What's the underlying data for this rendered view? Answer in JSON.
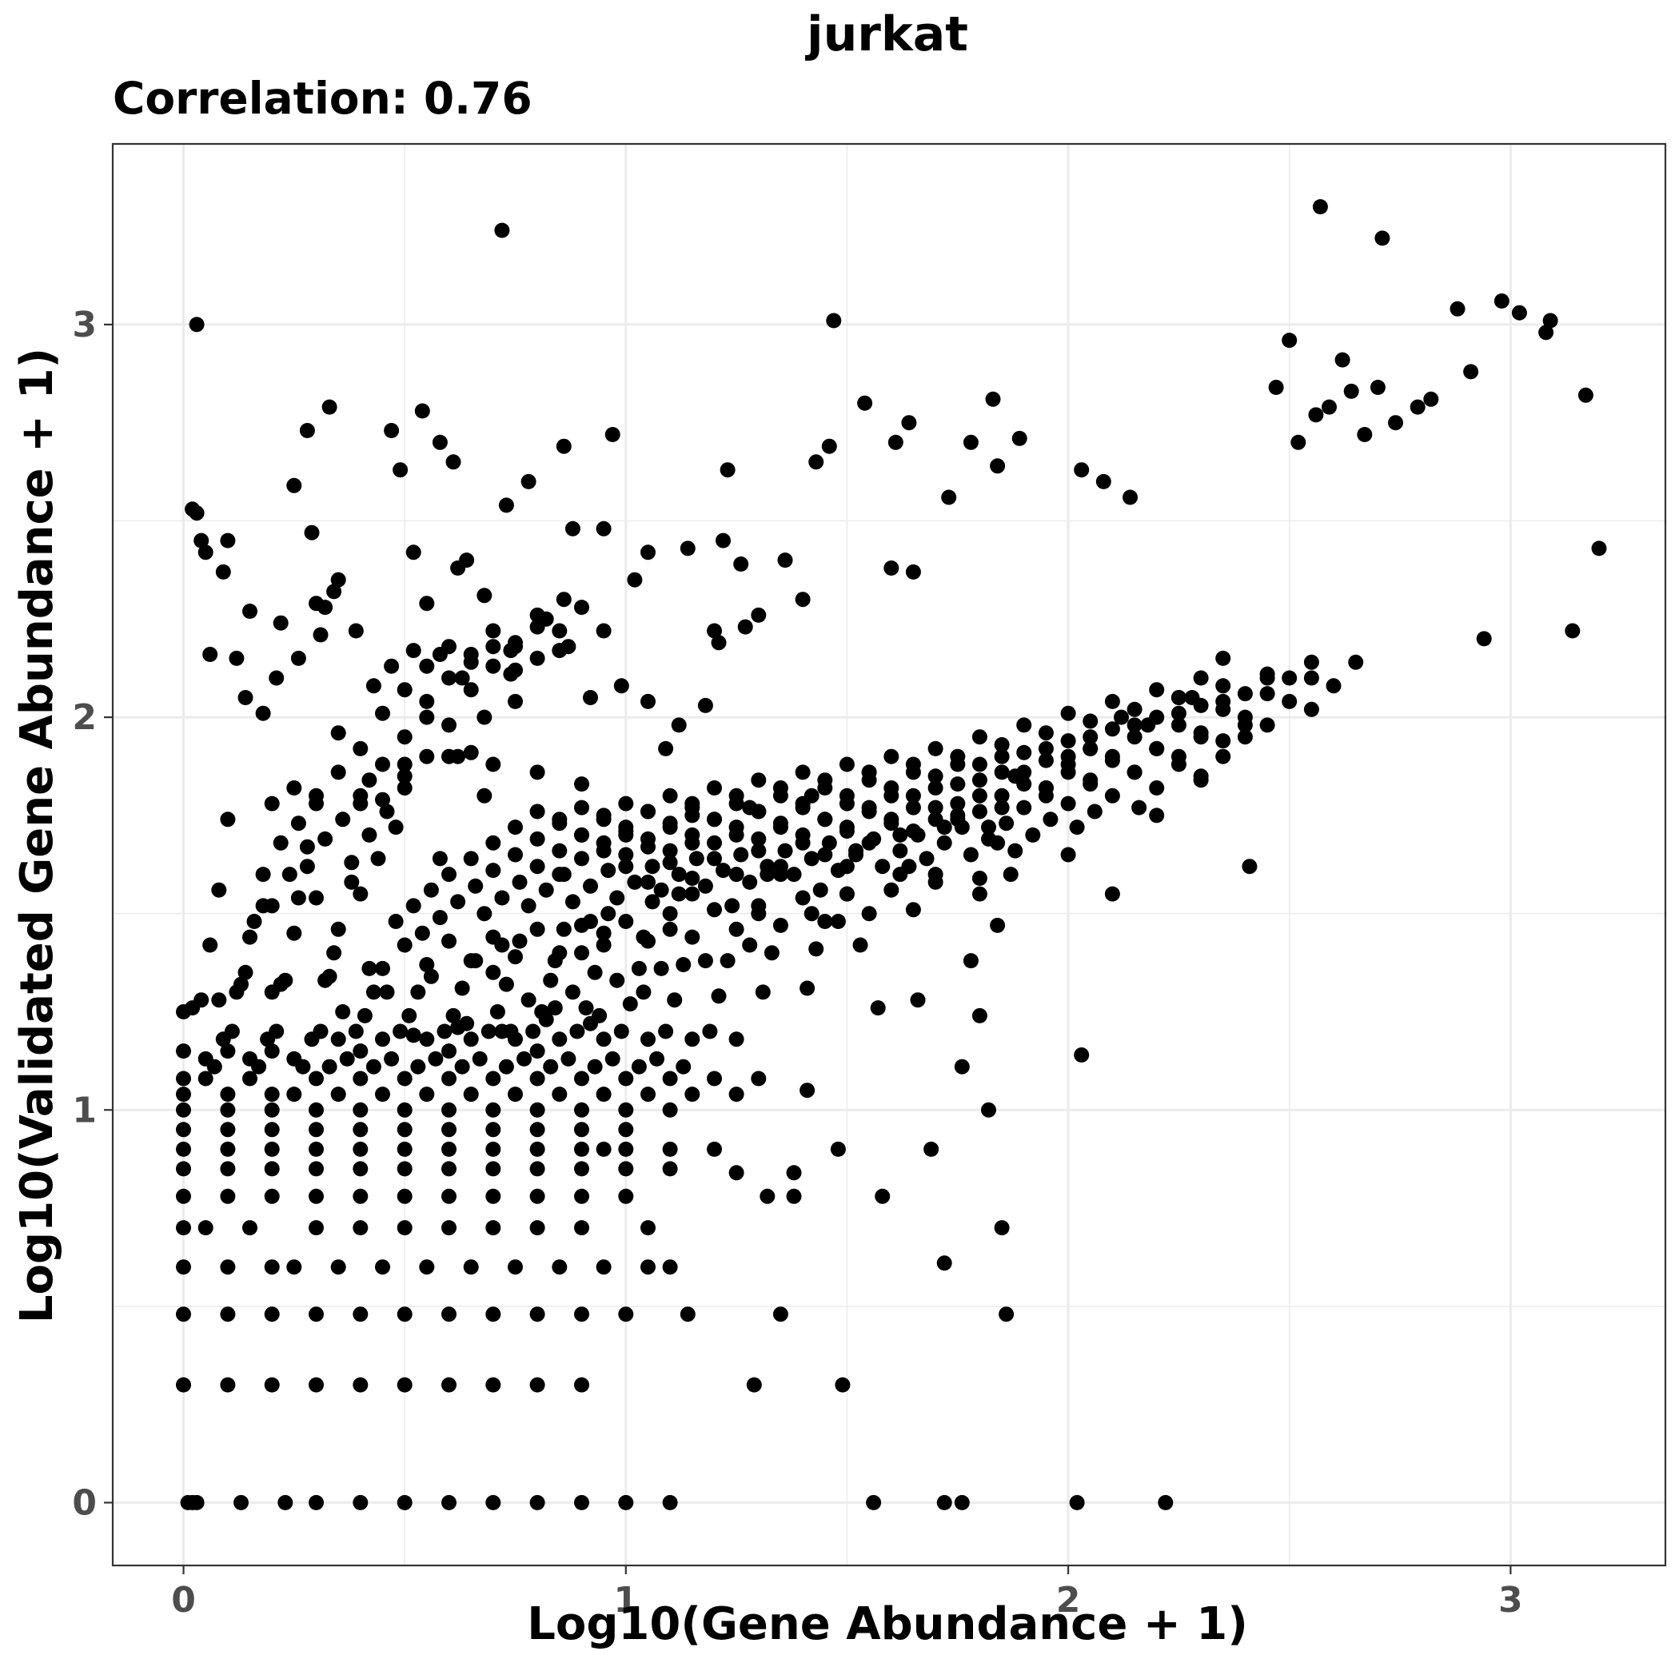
{
  "chart_data": {
    "type": "scatter",
    "title": "jurkat",
    "subtitle": "Correlation: 0.76",
    "xlabel": "Log10(Gene Abundance + 1)",
    "ylabel": "Log10(Validated Gene Abundance + 1)",
    "xlim": [
      -0.16,
      3.35
    ],
    "ylim": [
      -0.16,
      3.46
    ],
    "x_ticks": [
      0,
      1,
      2,
      3
    ],
    "x_tick_labels": [
      "0",
      "1",
      "2",
      "3"
    ],
    "y_ticks": [
      0,
      1,
      2,
      3
    ],
    "y_tick_labels": [
      "0",
      "1",
      "2",
      "3"
    ],
    "grid": true,
    "point_color": "#000000",
    "background": "#ffffff",
    "grid_color": "#ebebeb",
    "points_x": [
      0.72,
      2.57,
      2.71,
      0.03,
      1.47,
      2.88,
      2.98,
      3.02,
      3.08,
      3.09,
      2.91,
      3.17,
      3.2,
      3.14,
      2.94,
      0.33,
      0.47,
      0.54,
      0.28,
      0.49,
      0.58,
      0.61,
      0.73,
      0.78,
      0.86,
      0.97,
      1.83,
      2.62,
      2.64,
      2.7,
      2.82,
      2.79,
      2.74,
      2.67,
      2.59,
      2.56,
      2.5,
      2.47,
      2.52,
      1.54,
      1.64,
      1.73,
      1.89,
      1.84,
      1.61,
      1.46,
      1.78,
      2.03,
      2.08,
      2.14,
      1.14,
      1.23,
      1.36,
      1.43,
      1.26,
      1.65,
      1.05,
      0.02,
      0.04,
      0.05,
      0.06,
      0.09,
      0.25,
      0.29,
      0.35,
      0.62,
      0.64,
      0.55,
      0.68,
      0.74,
      0.88,
      0.95,
      0.86,
      2.41,
      2.1,
      1.87,
      1.78,
      1.84,
      2.03,
      1.82,
      1.85,
      1.72,
      1.66,
      1.58,
      1.49,
      1.38,
      1.32,
      1.29,
      1.41,
      1.57,
      1.76,
      1.8,
      2.02,
      2.22,
      1.56,
      1.76,
      1.86,
      1.48,
      1.25,
      1.35,
      1.1,
      1.14,
      1.05,
      0.95,
      1.38,
      1.69,
      1.72,
      0.01,
      0.02,
      0.03,
      0.1,
      0.14,
      0.18,
      0.21,
      0.26,
      0.3,
      0.34,
      0.39,
      0.43,
      0.47,
      0.52,
      0.58,
      0.63,
      0.68,
      0.74,
      0.8,
      0.87,
      0.92,
      0.99,
      1.05,
      1.09,
      1.12,
      1.18,
      1.21,
      1.27,
      1.3,
      0.15,
      0.22,
      0.31,
      0.4,
      0.5,
      0.6,
      0.7,
      0.8,
      0.9,
      0.25,
      0.45,
      0.65,
      0.85,
      1.0,
      1.15,
      1.28,
      1.42,
      1.55,
      0.35,
      0.55,
      0.75,
      0.95,
      1.15,
      1.35,
      1.5,
      1.62,
      1.75,
      1.88,
      2.0,
      2.12,
      2.25,
      2.35,
      1.2,
      1.4,
      1.6,
      1.8,
      2.0,
      2.2,
      2.3,
      2.4,
      2.45,
      0.82,
      1.02,
      1.22,
      1.42,
      1.62,
      1.82,
      1.95,
      2.05,
      2.18,
      2.28,
      0.12,
      0.32,
      0.52,
      0.72,
      0.92,
      1.12,
      1.32,
      1.52,
      1.72,
      0.2,
      0.42,
      0.62,
      0.84,
      1.04,
      1.24,
      1.44,
      1.64,
      1.84,
      0.1,
      0.3,
      0.5,
      0.7,
      0.9,
      1.1,
      1.3,
      1.5,
      1.7,
      0.28,
      0.48,
      0.68,
      0.88,
      1.08,
      1.28,
      1.48,
      0.18,
      0.38,
      0.58,
      0.78,
      0.98,
      1.18,
      0.06,
      0.16,
      0.26,
      0.36,
      0.46,
      0.56,
      0.66,
      0.76,
      0.86,
      0.96,
      1.06,
      0.08,
      0.24,
      0.44,
      0.64,
      0.84,
      1.04,
      0.14,
      0.34,
      0.54,
      0.74,
      0.94,
      0.04,
      0.22,
      0.42,
      0.62,
      0.82,
      0.02,
      0.12,
      0.32,
      0.52,
      0.72,
      0.92,
      0.0,
      0.08,
      0.2,
      0.4,
      0.6,
      0.8,
      0.0,
      0.1,
      0.2,
      0.3,
      0.4,
      0.5,
      0.6,
      0.7,
      0.8,
      0.9,
      1.0,
      1.1,
      1.2,
      1.3,
      0.0,
      0.05,
      0.15,
      0.25,
      0.35,
      0.45,
      0.55,
      0.65,
      0.75,
      0.85,
      0.95,
      1.05,
      1.15,
      1.25,
      0.0,
      0.1,
      0.2,
      0.3,
      0.4,
      0.5,
      0.6,
      0.7,
      0.8,
      0.9,
      1.0,
      1.1,
      0.0,
      0.1,
      0.2,
      0.3,
      0.4,
      0.5,
      0.6,
      0.7,
      0.8,
      0.9,
      1.0,
      0.0,
      0.1,
      0.2,
      0.3,
      0.4,
      0.5,
      0.6,
      0.7,
      0.8,
      0.9,
      1.0,
      1.1,
      1.2,
      0.0,
      0.1,
      0.2,
      0.3,
      0.4,
      0.5,
      0.6,
      0.7,
      0.8,
      0.9,
      1.0,
      1.1,
      0.0,
      0.1,
      0.2,
      0.3,
      0.4,
      0.5,
      0.6,
      0.7,
      0.8,
      0.9,
      1.0,
      0.0,
      0.1,
      0.2,
      0.3,
      0.4,
      0.5,
      0.6,
      0.7,
      0.8,
      0.9,
      0.0,
      0.05,
      0.15,
      0.25,
      0.35,
      0.45,
      0.55,
      0.65,
      0.75,
      0.85,
      0.95,
      1.05,
      0.0,
      0.1,
      0.2,
      0.3,
      0.4,
      0.5,
      0.6,
      0.7,
      0.8,
      0.9,
      1.0,
      0.0,
      0.1,
      0.2,
      0.3,
      0.4,
      0.5,
      0.6,
      0.7,
      0.8,
      0.9,
      0.0,
      0.1,
      0.2,
      0.3,
      0.4,
      0.5,
      0.6,
      0.7,
      0.8,
      0.9,
      1.0,
      1.1,
      0.03,
      0.13,
      0.23,
      0.33,
      0.43,
      0.53,
      0.63,
      0.73,
      0.83,
      0.93,
      1.03,
      1.13,
      0.07,
      0.17,
      0.27,
      0.37,
      0.47,
      0.57,
      0.67,
      0.77,
      0.87,
      0.97,
      1.07,
      0.05,
      0.15,
      0.25,
      0.35,
      0.45,
      0.55,
      0.65,
      0.75,
      0.85,
      0.95,
      1.05,
      1.15,
      1.25,
      0.09,
      0.19,
      0.29,
      0.39,
      0.49,
      0.59,
      0.69,
      0.79,
      0.89,
      0.99,
      1.09,
      1.19,
      0.11,
      0.21,
      0.31,
      0.41,
      0.51,
      0.61,
      0.71,
      0.81,
      0.91,
      1.01,
      1.11,
      1.21,
      1.31,
      1.41,
      0.13,
      0.23,
      0.33,
      0.43,
      0.53,
      0.63,
      0.73,
      0.83,
      0.93,
      1.03,
      1.13,
      1.23,
      1.33,
      1.43,
      1.53,
      0.15,
      0.25,
      0.35,
      0.45,
      0.55,
      0.65,
      0.75,
      0.85,
      0.95,
      1.05,
      1.15,
      1.25,
      1.35,
      1.45,
      1.55,
      1.65,
      0.2,
      0.3,
      0.4,
      0.5,
      0.6,
      0.7,
      0.8,
      0.9,
      1.0,
      1.1,
      1.2,
      1.3,
      1.4,
      1.5,
      1.6,
      1.7,
      1.8,
      0.18,
      0.28,
      0.38,
      0.48,
      0.58,
      0.68,
      0.78,
      0.88,
      0.98,
      1.08,
      1.18,
      1.28,
      1.38,
      1.48,
      1.58,
      1.68,
      1.78,
      1.88,
      0.22,
      0.32,
      0.42,
      0.52,
      0.62,
      0.72,
      0.82,
      0.92,
      1.02,
      1.12,
      1.22,
      1.32,
      1.42,
      1.52,
      1.62,
      1.72,
      1.82,
      1.92,
      2.02,
      0.26,
      0.36,
      0.46,
      0.56,
      0.66,
      0.76,
      0.86,
      0.96,
      1.06,
      1.16,
      1.26,
      1.36,
      1.46,
      1.56,
      1.66,
      1.76,
      1.86,
      1.96,
      2.06,
      2.16,
      0.3,
      0.4,
      0.5,
      0.6,
      0.7,
      0.8,
      0.9,
      1.0,
      1.1,
      1.2,
      1.3,
      1.4,
      1.5,
      1.6,
      1.7,
      1.8,
      1.9,
      2.0,
      2.1,
      2.2,
      2.3,
      0.35,
      0.45,
      0.55,
      0.65,
      0.75,
      0.85,
      0.95,
      1.05,
      1.15,
      1.25,
      1.35,
      1.45,
      1.55,
      1.65,
      1.75,
      1.85,
      1.95,
      2.05,
      2.15,
      2.25,
      2.35,
      0.4,
      0.5,
      0.6,
      0.7,
      0.8,
      0.9,
      1.0,
      1.1,
      1.2,
      1.3,
      1.4,
      1.5,
      1.6,
      1.7,
      1.8,
      1.9,
      2.0,
      2.1,
      2.2,
      2.3,
      2.4,
      0.45,
      0.55,
      0.65,
      0.75,
      0.85,
      0.95,
      1.05,
      1.15,
      1.25,
      1.35,
      1.45,
      1.55,
      1.65,
      1.75,
      1.85,
      1.95,
      2.05,
      2.15,
      2.25,
      2.35,
      0.5,
      0.6,
      0.7,
      0.8,
      0.9,
      1.0,
      1.1,
      1.2,
      1.3,
      1.4,
      1.5,
      1.6,
      1.7,
      1.8,
      1.9,
      2.0,
      2.1,
      2.2,
      2.3,
      0.55,
      0.65,
      0.75,
      0.85,
      0.95,
      1.05,
      1.15,
      1.25,
      1.35,
      1.45,
      1.55,
      1.65,
      1.75,
      1.85,
      1.95,
      2.05,
      2.15,
      2.25,
      2.35,
      2.45,
      2.55,
      0.6,
      0.7,
      0.8,
      0.9,
      1.0,
      1.1,
      1.2,
      1.3,
      1.4,
      1.5,
      1.6,
      1.7,
      1.8,
      1.9,
      2.0,
      2.1,
      2.2,
      2.3,
      2.4,
      2.5,
      0.65,
      0.75,
      0.85,
      0.95,
      1.05,
      1.15,
      1.25,
      1.35,
      1.45,
      1.55,
      1.65,
      1.75,
      1.85,
      1.95,
      2.05,
      2.15,
      2.25,
      2.35,
      2.45,
      2.55,
      2.65,
      0.7,
      0.8,
      0.9,
      1.0,
      1.1,
      1.2,
      1.3,
      1.4,
      1.5,
      1.6,
      1.7,
      1.8,
      1.9,
      2.0,
      2.1,
      2.2,
      2.3,
      2.4,
      2.5,
      2.6,
      0.75,
      0.85,
      0.95,
      1.05,
      1.15,
      1.25,
      1.35,
      1.45,
      1.55,
      1.65,
      1.75,
      1.85,
      1.95,
      2.05,
      2.15,
      2.25,
      2.35,
      2.45,
      2.55
    ],
    "points_y": [
      3.24,
      3.3,
      3.22,
      3.0,
      3.01,
      3.04,
      3.06,
      3.03,
      2.98,
      3.01,
      2.88,
      2.82,
      2.43,
      2.22,
      2.2,
      2.79,
      2.73,
      2.78,
      2.73,
      2.63,
      2.7,
      2.65,
      2.54,
      2.6,
      2.69,
      2.72,
      2.81,
      2.91,
      2.83,
      2.84,
      2.81,
      2.79,
      2.75,
      2.72,
      2.79,
      2.77,
      2.96,
      2.84,
      2.7,
      2.8,
      2.75,
      2.56,
      2.71,
      2.64,
      2.7,
      2.69,
      2.7,
      2.63,
      2.6,
      2.56,
      2.43,
      2.63,
      2.4,
      2.65,
      2.39,
      2.37,
      2.42,
      2.53,
      2.45,
      2.42,
      2.16,
      2.37,
      2.59,
      2.47,
      2.35,
      2.38,
      2.4,
      2.29,
      2.31,
      2.17,
      2.48,
      2.48,
      2.3,
      1.62,
      1.55,
      1.6,
      1.38,
      1.47,
      1.14,
      1.0,
      0.7,
      0.61,
      1.28,
      0.78,
      0.3,
      0.78,
      0.78,
      0.3,
      1.05,
      1.26,
      1.11,
      1.24,
      0.0,
      0.0,
      0.0,
      0.0,
      0.48,
      0.9,
      0.84,
      0.48,
      0.6,
      0.48,
      0.7,
      0.9,
      0.84,
      0.9,
      0.0,
      0.0,
      0.0,
      2.52,
      2.45,
      2.05,
      2.01,
      2.1,
      2.15,
      2.29,
      2.32,
      2.22,
      2.08,
      2.13,
      2.17,
      2.16,
      2.1,
      2.0,
      2.11,
      2.15,
      2.18,
      2.05,
      2.08,
      2.04,
      1.92,
      1.98,
      2.03,
      2.19,
      2.23,
      2.26,
      2.27,
      2.24,
      2.21,
      1.78,
      1.85,
      1.9,
      1.88,
      1.86,
      1.83,
      1.82,
      1.79,
      1.91,
      1.6,
      1.7,
      1.75,
      1.77,
      1.8,
      1.86,
      1.96,
      2.0,
      2.04,
      1.45,
      1.55,
      1.6,
      1.62,
      1.7,
      1.75,
      1.85,
      1.9,
      2.0,
      2.05,
      2.15,
      2.22,
      2.3,
      2.38,
      1.55,
      1.65,
      1.75,
      1.85,
      1.95,
      2.1,
      2.25,
      2.35,
      2.45,
      1.5,
      1.6,
      1.72,
      1.82,
      1.92,
      1.98,
      2.05,
      2.15,
      2.28,
      2.42,
      1.42,
      1.48,
      1.55,
      1.6,
      1.66,
      1.72,
      1.78,
      1.84,
      1.9,
      1.38,
      1.44,
      1.52,
      1.56,
      1.62,
      1.68,
      1.74,
      1.8,
      1.88,
      1.35,
      1.4,
      1.46,
      1.5,
      1.55,
      1.6,
      1.67,
      1.72,
      1.8,
      1.3,
      1.36,
      1.42,
      1.48,
      1.52,
      1.58,
      1.64,
      1.28,
      1.33,
      1.38,
      1.42,
      1.48,
      1.54,
      1.25,
      1.3,
      1.34,
      1.38,
      1.43,
      1.46,
      1.5,
      1.53,
      1.56,
      1.6,
      1.64,
      1.22,
      1.26,
      1.3,
      1.35,
      1.4,
      1.45,
      1.2,
      1.24,
      1.28,
      1.32,
      1.36,
      1.21,
      1.23,
      1.26,
      1.3,
      1.33,
      1.19,
      1.2,
      1.22,
      1.25,
      1.28,
      1.3,
      1.15,
      1.15,
      1.15,
      1.15,
      1.15,
      1.15,
      1.08,
      1.08,
      1.08,
      1.08,
      1.08,
      1.08,
      1.08,
      1.08,
      1.08,
      1.08,
      1.08,
      1.08,
      1.08,
      1.08,
      1.04,
      1.04,
      1.04,
      1.04,
      1.04,
      1.04,
      1.04,
      1.04,
      1.04,
      1.04,
      1.04,
      1.04,
      1.04,
      1.04,
      1.0,
      1.0,
      1.0,
      1.0,
      1.0,
      1.0,
      1.0,
      1.0,
      1.0,
      1.0,
      1.0,
      1.0,
      0.95,
      0.95,
      0.95,
      0.95,
      0.95,
      0.95,
      0.95,
      0.95,
      0.95,
      0.95,
      0.95,
      0.9,
      0.9,
      0.9,
      0.9,
      0.9,
      0.9,
      0.9,
      0.9,
      0.9,
      0.9,
      0.9,
      0.9,
      0.9,
      0.85,
      0.85,
      0.85,
      0.85,
      0.85,
      0.85,
      0.85,
      0.85,
      0.85,
      0.85,
      0.85,
      0.85,
      0.78,
      0.78,
      0.78,
      0.78,
      0.78,
      0.78,
      0.78,
      0.78,
      0.78,
      0.78,
      0.78,
      0.7,
      0.7,
      0.7,
      0.7,
      0.7,
      0.7,
      0.7,
      0.7,
      0.7,
      0.7,
      0.6,
      0.6,
      0.6,
      0.6,
      0.6,
      0.6,
      0.6,
      0.6,
      0.6,
      0.6,
      0.6,
      0.6,
      0.48,
      0.48,
      0.48,
      0.48,
      0.48,
      0.48,
      0.48,
      0.48,
      0.48,
      0.48,
      0.48,
      0.3,
      0.3,
      0.3,
      0.3,
      0.3,
      0.3,
      0.3,
      0.3,
      0.3,
      0.3,
      0.0,
      0.0,
      0.0,
      0.0,
      0.0,
      0.0,
      0.0,
      0.0,
      0.0,
      0.0,
      0.0,
      0.0,
      1.11,
      1.11,
      1.11,
      1.11,
      1.11,
      1.11,
      1.11,
      1.11,
      1.11,
      1.11,
      1.11,
      1.11,
      1.13,
      1.13,
      1.13,
      1.13,
      1.13,
      1.13,
      1.13,
      1.13,
      1.13,
      1.13,
      1.13,
      1.18,
      1.18,
      1.18,
      1.18,
      1.18,
      1.18,
      1.18,
      1.18,
      1.18,
      1.18,
      1.18,
      1.18,
      1.18,
      1.2,
      1.2,
      1.2,
      1.2,
      1.2,
      1.2,
      1.2,
      1.2,
      1.2,
      1.2,
      1.2,
      1.2,
      1.24,
      1.24,
      1.24,
      1.25,
      1.25,
      1.26,
      1.27,
      1.28,
      1.29,
      1.3,
      1.31,
      1.32,
      1.33,
      1.34,
      1.3,
      1.3,
      1.31,
      1.32,
      1.33,
      1.35,
      1.36,
      1.37,
      1.38,
      1.4,
      1.41,
      1.42,
      1.44,
      1.45,
      1.46,
      1.36,
      1.37,
      1.38,
      1.39,
      1.4,
      1.42,
      1.43,
      1.44,
      1.46,
      1.47,
      1.48,
      1.5,
      1.51,
      1.52,
      1.54,
      1.55,
      1.42,
      1.43,
      1.44,
      1.46,
      1.47,
      1.48,
      1.5,
      1.51,
      1.52,
      1.54,
      1.55,
      1.56,
      1.58,
      1.59,
      1.6,
      1.62,
      1.63,
      1.48,
      1.49,
      1.5,
      1.52,
      1.53,
      1.54,
      1.56,
      1.57,
      1.58,
      1.6,
      1.61,
      1.62,
      1.64,
      1.65,
      1.66,
      1.68,
      1.69,
      1.7,
      1.52,
      1.53,
      1.54,
      1.56,
      1.57,
      1.58,
      1.6,
      1.61,
      1.62,
      1.64,
      1.65,
      1.66,
      1.68,
      1.69,
      1.7,
      1.72,
      1.73,
      1.74,
      1.76,
      1.56,
      1.57,
      1.58,
      1.6,
      1.61,
      1.62,
      1.64,
      1.65,
      1.66,
      1.68,
      1.69,
      1.7,
      1.72,
      1.73,
      1.74,
      1.76,
      1.77,
      1.78,
      1.8,
      1.82,
      1.6,
      1.61,
      1.62,
      1.64,
      1.65,
      1.66,
      1.68,
      1.69,
      1.7,
      1.72,
      1.73,
      1.74,
      1.76,
      1.77,
      1.78,
      1.8,
      1.82,
      1.84,
      1.86,
      1.88,
      1.9,
      1.64,
      1.65,
      1.66,
      1.68,
      1.69,
      1.7,
      1.72,
      1.73,
      1.74,
      1.76,
      1.77,
      1.78,
      1.8,
      1.82,
      1.84,
      1.86,
      1.88,
      1.9,
      1.92,
      1.95,
      1.98,
      1.68,
      1.69,
      1.7,
      1.72,
      1.73,
      1.74,
      1.76,
      1.77,
      1.78,
      1.8,
      1.82,
      1.84,
      1.86,
      1.88,
      1.9,
      1.92,
      1.95,
      1.98,
      2.01,
      2.04,
      2.07,
      1.72,
      1.73,
      1.74,
      1.76,
      1.77,
      1.78,
      1.8,
      1.82,
      1.84,
      1.86,
      1.88,
      1.9,
      1.92,
      1.95,
      1.98,
      2.01,
      2.04,
      2.07,
      2.1,
      2.13,
      1.76,
      1.77,
      1.78,
      1.8,
      1.82,
      1.84,
      1.86,
      1.88,
      1.9,
      1.92,
      1.95,
      1.98,
      2.01,
      2.04,
      2.07,
      2.1,
      2.13,
      2.16,
      2.19,
      1.74,
      1.75,
      1.76,
      1.78,
      1.8,
      1.82,
      1.84,
      1.86,
      1.88,
      1.9,
      1.93,
      1.96,
      1.99,
      2.02,
      2.05,
      2.08,
      2.11,
      2.14,
      2.18,
      2.22,
      2.26,
      1.7,
      1.71,
      1.72,
      1.74,
      1.76,
      1.78,
      1.8,
      1.82,
      1.85,
      1.88,
      1.91,
      1.94,
      1.97,
      2.0,
      2.03,
      2.06,
      2.1,
      2.14,
      2.18,
      2.22,
      1.66,
      1.67,
      1.68,
      1.7,
      1.72,
      1.74,
      1.77,
      1.8,
      1.83,
      1.86,
      1.89,
      1.92,
      1.95,
      1.98,
      2.02,
      2.06,
      2.1,
      2.14,
      2.18,
      2.23,
      2.28,
      1.62,
      1.63,
      1.64,
      1.66,
      1.68,
      1.71,
      1.74,
      1.77,
      1.8,
      1.83,
      1.86,
      1.89,
      1.92,
      1.96,
      2.0,
      2.04,
      2.08,
      2.12,
      2.17,
      2.22,
      1.58,
      1.59,
      1.6,
      1.62,
      1.65,
      1.68,
      1.71,
      1.74,
      1.77,
      1.8,
      1.83,
      1.86,
      1.9,
      1.94,
      1.98,
      2.02,
      2.06,
      2.11,
      2.16
    ]
  }
}
